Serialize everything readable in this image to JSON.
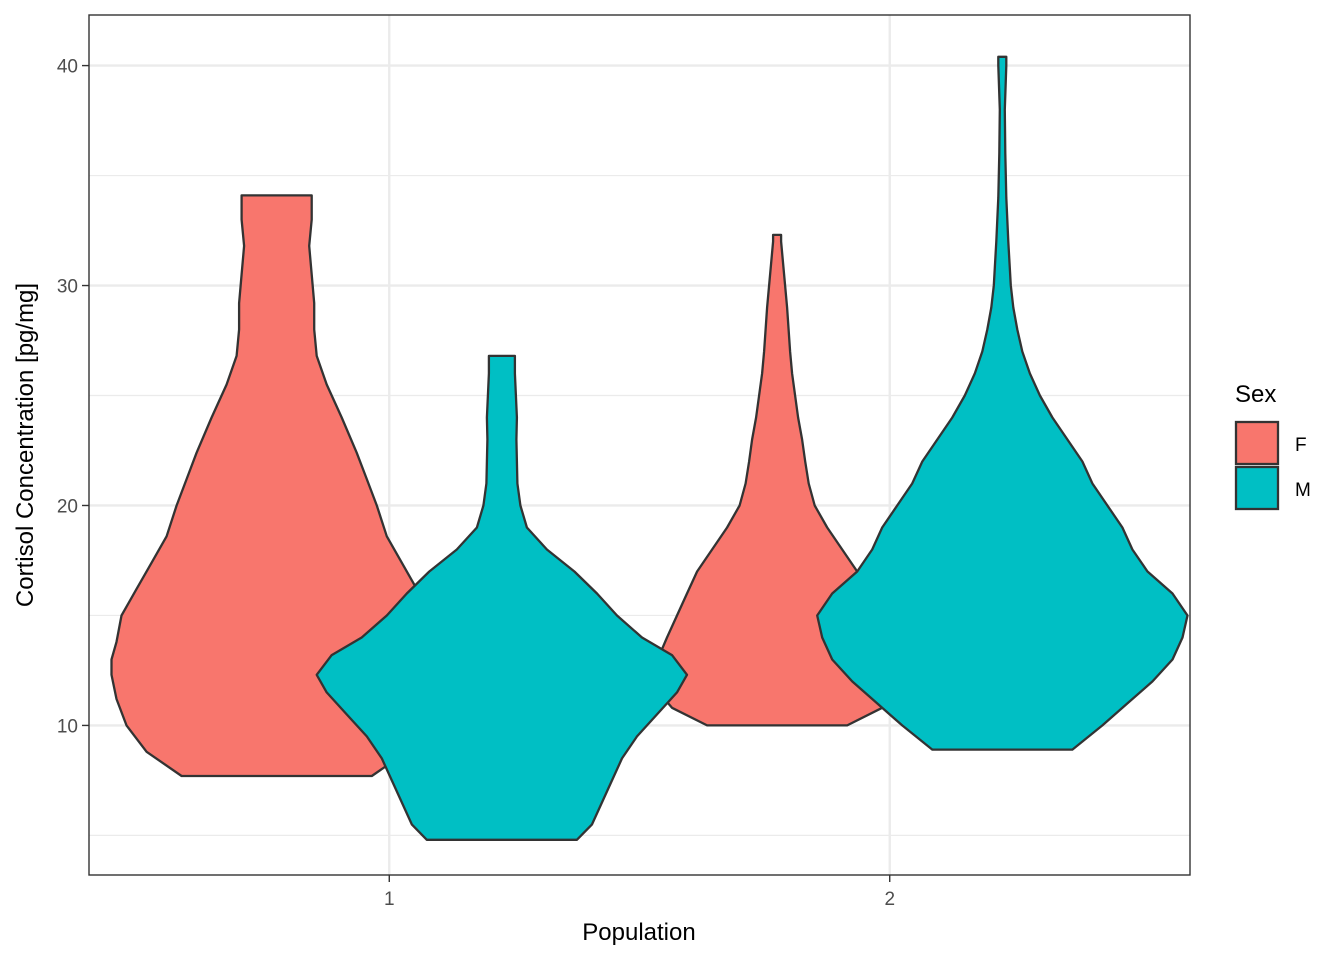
{
  "chart_data": {
    "type": "violin",
    "xlabel": "Population",
    "ylabel": "Cortisol Concentration [pg/mg]",
    "categories": [
      "1",
      "2"
    ],
    "ylim": [
      3.2,
      42.3
    ],
    "yticks": [
      10,
      20,
      30,
      40
    ],
    "grid": true,
    "legend": {
      "title": "Sex",
      "position": "right",
      "entries": [
        "F",
        "M"
      ]
    },
    "colors": {
      "F": "#F8766D",
      "M": "#00BFC4"
    },
    "series": [
      {
        "name": "F",
        "violins": [
          {
            "category": "1",
            "ymin": 7.7,
            "ymax": 34.1,
            "profile": [
              [
                7.7,
                0.19
              ],
              [
                8.8,
                0.26
              ],
              [
                10,
                0.3
              ],
              [
                11.2,
                0.32
              ],
              [
                12.3,
                0.33
              ],
              [
                13,
                0.33
              ],
              [
                13.8,
                0.32
              ],
              [
                15,
                0.31
              ],
              [
                16.2,
                0.28
              ],
              [
                17.4,
                0.25
              ],
              [
                18.6,
                0.22
              ],
              [
                20,
                0.2
              ],
              [
                21.2,
                0.18
              ],
              [
                22.4,
                0.16
              ],
              [
                24,
                0.13
              ],
              [
                25.5,
                0.1
              ],
              [
                26.8,
                0.08
              ],
              [
                28,
                0.075
              ],
              [
                29.2,
                0.075
              ],
              [
                30.5,
                0.07
              ],
              [
                31.8,
                0.065
              ],
              [
                33,
                0.07
              ],
              [
                34.1,
                0.07
              ]
            ]
          },
          {
            "category": "2",
            "ymin": 10.0,
            "ymax": 32.3,
            "profile": [
              [
                10,
                0.14
              ],
              [
                10.8,
                0.21
              ],
              [
                11.6,
                0.24
              ],
              [
                12.4,
                0.245
              ],
              [
                13.2,
                0.235
              ],
              [
                14,
                0.22
              ],
              [
                15,
                0.2
              ],
              [
                16,
                0.18
              ],
              [
                17,
                0.16
              ],
              [
                18,
                0.13
              ],
              [
                19,
                0.1
              ],
              [
                20,
                0.075
              ],
              [
                21,
                0.063
              ],
              [
                22,
                0.056
              ],
              [
                23,
                0.05
              ],
              [
                24,
                0.042
              ],
              [
                25,
                0.036
              ],
              [
                26,
                0.03
              ],
              [
                27,
                0.026
              ],
              [
                28,
                0.023
              ],
              [
                29,
                0.02
              ],
              [
                30,
                0.016
              ],
              [
                31,
                0.012
              ],
              [
                32,
                0.008
              ],
              [
                32.3,
                0.008
              ]
            ]
          }
        ]
      },
      {
        "name": "M",
        "violins": [
          {
            "category": "1",
            "ymin": 4.8,
            "ymax": 26.8,
            "profile": [
              [
                4.8,
                0.15
              ],
              [
                5.5,
                0.18
              ],
              [
                6.5,
                0.2
              ],
              [
                7.5,
                0.22
              ],
              [
                8.5,
                0.24
              ],
              [
                9.5,
                0.27
              ],
              [
                10.5,
                0.31
              ],
              [
                11.5,
                0.35
              ],
              [
                12.3,
                0.37
              ],
              [
                13.2,
                0.34
              ],
              [
                14,
                0.28
              ],
              [
                15,
                0.23
              ],
              [
                16,
                0.19
              ],
              [
                17,
                0.145
              ],
              [
                18,
                0.09
              ],
              [
                19,
                0.05
              ],
              [
                20,
                0.037
              ],
              [
                21,
                0.031
              ],
              [
                22,
                0.03
              ],
              [
                23,
                0.029
              ],
              [
                24,
                0.03
              ],
              [
                25,
                0.028
              ],
              [
                26,
                0.026
              ],
              [
                26.8,
                0.026
              ]
            ]
          },
          {
            "category": "2",
            "ymin": 8.9,
            "ymax": 40.4,
            "profile": [
              [
                8.9,
                0.14
              ],
              [
                10,
                0.2
              ],
              [
                11,
                0.25
              ],
              [
                12,
                0.3
              ],
              [
                13,
                0.34
              ],
              [
                14,
                0.36
              ],
              [
                15,
                0.37
              ],
              [
                16,
                0.34
              ],
              [
                17,
                0.29
              ],
              [
                18,
                0.26
              ],
              [
                19,
                0.24
              ],
              [
                20,
                0.21
              ],
              [
                21,
                0.18
              ],
              [
                22,
                0.16
              ],
              [
                23,
                0.13
              ],
              [
                24,
                0.1
              ],
              [
                25,
                0.075
              ],
              [
                26,
                0.055
              ],
              [
                27,
                0.04
              ],
              [
                28,
                0.03
              ],
              [
                29,
                0.022
              ],
              [
                30,
                0.017
              ],
              [
                32,
                0.012
              ],
              [
                34,
                0.008
              ],
              [
                36,
                0.006
              ],
              [
                38,
                0.005
              ],
              [
                40,
                0.008
              ],
              [
                40.4,
                0.008
              ]
            ]
          }
        ]
      }
    ]
  }
}
